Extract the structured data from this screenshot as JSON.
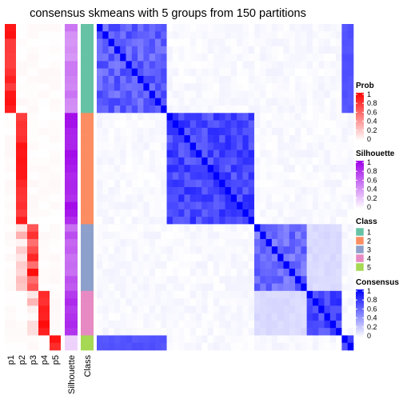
{
  "chart_data": {
    "type": "heatmap",
    "title": "consensus skmeans with 5 groups from 150 partitions",
    "annotation_columns": [
      "p1",
      "p2",
      "p3",
      "p4",
      "p5",
      "Silhouette",
      "Class"
    ],
    "class_groups": [
      {
        "class": 1,
        "n": 12
      },
      {
        "class": 2,
        "n": 15
      },
      {
        "class": 3,
        "n": 9
      },
      {
        "class": 4,
        "n": 6
      },
      {
        "class": 5,
        "n": 2
      }
    ],
    "group_silhouette": [
      0.55,
      0.95,
      0.7,
      0.85,
      0.3
    ],
    "within_class_consensus": [
      0.75,
      0.85,
      0.7,
      0.85,
      0.8
    ],
    "cross_consensus": [
      {
        "rows": 1,
        "cols": 5,
        "value": 0.65
      },
      {
        "rows": 3,
        "cols": 4,
        "value": 0.12
      }
    ],
    "legends": {
      "prob": {
        "title": "Prob",
        "ticks": [
          "1",
          "0.8",
          "0.6",
          "0.4",
          "0.2",
          "0"
        ],
        "color_low": "#ffffff",
        "color_high": "#ff0000"
      },
      "silhouette": {
        "title": "Silhouette",
        "ticks": [
          "1",
          "0.8",
          "0.6",
          "0.4",
          "0.2",
          "0"
        ],
        "color_low": "#ffffff",
        "color_high": "#9d00e8"
      },
      "class": {
        "title": "Class",
        "labels": [
          "1",
          "2",
          "3",
          "4",
          "5"
        ],
        "colors": [
          "#66c2a5",
          "#fc8d62",
          "#8da0cb",
          "#e78ac3",
          "#a6d854"
        ]
      },
      "consensus": {
        "title": "Consensus",
        "ticks": [
          "1",
          "0.8",
          "0.6",
          "0.4",
          "0.2",
          "0"
        ],
        "color_low": "#ffffff",
        "color_high": "#0000ff"
      }
    }
  }
}
